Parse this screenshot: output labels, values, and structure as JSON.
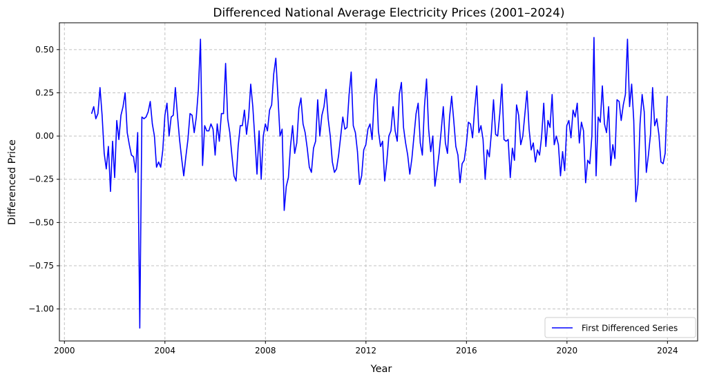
{
  "chart_data": {
    "type": "line",
    "title": "Differenced National Average Electricity Prices (2001–2024)",
    "xlabel": "Year",
    "ylabel": "Differenced Price",
    "xlim": [
      1999.8,
      2025.2
    ],
    "ylim": [
      -1.185,
      0.655
    ],
    "x_ticks": [
      2000,
      2004,
      2008,
      2012,
      2016,
      2020,
      2024
    ],
    "x_tick_labels": [
      "2000",
      "2004",
      "2008",
      "2012",
      "2016",
      "2020",
      "2024"
    ],
    "y_ticks": [
      0.5,
      0.25,
      0.0,
      -0.25,
      -0.5,
      -0.75,
      -1.0
    ],
    "y_tick_labels": [
      "0.50",
      "0.25",
      "0.00",
      "−0.25",
      "−0.50",
      "−0.75",
      "−1.00"
    ],
    "grid": true,
    "legend_position": "lower-right",
    "colors": {
      "series": "#0000ff",
      "grid": "#c0c0c0",
      "axis": "#000000"
    },
    "series": [
      {
        "name": "First Differenced Series",
        "x_start": 2001.083,
        "x_step": 0.0833,
        "values": [
          0.13,
          0.17,
          0.1,
          0.13,
          0.28,
          0.12,
          -0.1,
          -0.19,
          -0.06,
          -0.32,
          -0.03,
          -0.24,
          0.09,
          -0.02,
          0.12,
          0.17,
          0.25,
          0.02,
          -0.05,
          -0.11,
          -0.12,
          -0.21,
          0.02,
          -1.11,
          0.11,
          0.1,
          0.11,
          0.14,
          0.2,
          0.07,
          0.0,
          -0.18,
          -0.15,
          -0.18,
          -0.08,
          0.12,
          0.19,
          0.0,
          0.11,
          0.12,
          0.28,
          0.12,
          -0.02,
          -0.13,
          -0.23,
          -0.12,
          -0.02,
          0.13,
          0.12,
          0.02,
          0.11,
          0.27,
          0.56,
          -0.17,
          0.06,
          0.03,
          0.03,
          0.07,
          0.04,
          -0.11,
          0.07,
          -0.03,
          0.13,
          0.13,
          0.42,
          0.1,
          0.02,
          -0.11,
          -0.23,
          -0.26,
          -0.06,
          0.06,
          0.06,
          0.15,
          0.01,
          0.11,
          0.3,
          0.17,
          -0.02,
          -0.22,
          0.03,
          -0.25,
          0.0,
          0.07,
          0.03,
          0.15,
          0.18,
          0.36,
          0.45,
          0.23,
          0.0,
          0.04,
          -0.43,
          -0.29,
          -0.24,
          -0.06,
          0.06,
          -0.1,
          -0.04,
          0.16,
          0.22,
          0.07,
          0.02,
          -0.07,
          -0.18,
          -0.21,
          -0.07,
          -0.03,
          0.21,
          0.0,
          0.12,
          0.17,
          0.27,
          0.1,
          0.0,
          -0.15,
          -0.21,
          -0.19,
          -0.11,
          0.0,
          0.11,
          0.04,
          0.05,
          0.24,
          0.37,
          0.06,
          0.02,
          -0.09,
          -0.28,
          -0.23,
          -0.08,
          -0.05,
          0.04,
          0.07,
          -0.02,
          0.22,
          0.33,
          0.03,
          -0.06,
          -0.03,
          -0.26,
          -0.15,
          0.0,
          0.03,
          0.17,
          0.03,
          -0.03,
          0.24,
          0.31,
          0.05,
          -0.04,
          -0.11,
          -0.22,
          -0.13,
          0.0,
          0.13,
          0.19,
          -0.04,
          -0.11,
          0.17,
          0.33,
          0.04,
          -0.09,
          0.0,
          -0.29,
          -0.2,
          -0.1,
          0.03,
          0.17,
          -0.04,
          -0.1,
          0.11,
          0.23,
          0.09,
          -0.06,
          -0.11,
          -0.27,
          -0.16,
          -0.14,
          -0.05,
          0.08,
          0.07,
          -0.01,
          0.16,
          0.29,
          0.02,
          0.06,
          -0.02,
          -0.25,
          -0.08,
          -0.12,
          0.02,
          0.21,
          0.01,
          0.0,
          0.13,
          0.3,
          -0.02,
          -0.03,
          -0.02,
          -0.24,
          -0.07,
          -0.14,
          0.18,
          0.12,
          -0.05,
          0.0,
          0.13,
          0.26,
          0.04,
          -0.08,
          -0.04,
          -0.15,
          -0.08,
          -0.11,
          0.0,
          0.19,
          -0.06,
          0.09,
          0.05,
          0.24,
          -0.05,
          0.0,
          -0.05,
          -0.23,
          -0.09,
          -0.2,
          0.06,
          0.09,
          -0.01,
          0.15,
          0.11,
          0.19,
          -0.04,
          0.08,
          0.03,
          -0.27,
          -0.14,
          -0.16,
          0.0,
          0.57,
          -0.23,
          0.11,
          0.08,
          0.29,
          0.07,
          0.02,
          0.17,
          -0.17,
          -0.05,
          -0.13,
          0.21,
          0.2,
          0.09,
          0.18,
          0.24,
          0.56,
          0.17,
          0.3,
          0.09,
          -0.38,
          -0.28,
          0.07,
          0.24,
          0.14,
          -0.21,
          -0.11,
          0.01,
          0.28,
          0.06,
          0.1,
          0.01,
          -0.15,
          -0.16,
          -0.1,
          0.23
        ]
      }
    ]
  }
}
